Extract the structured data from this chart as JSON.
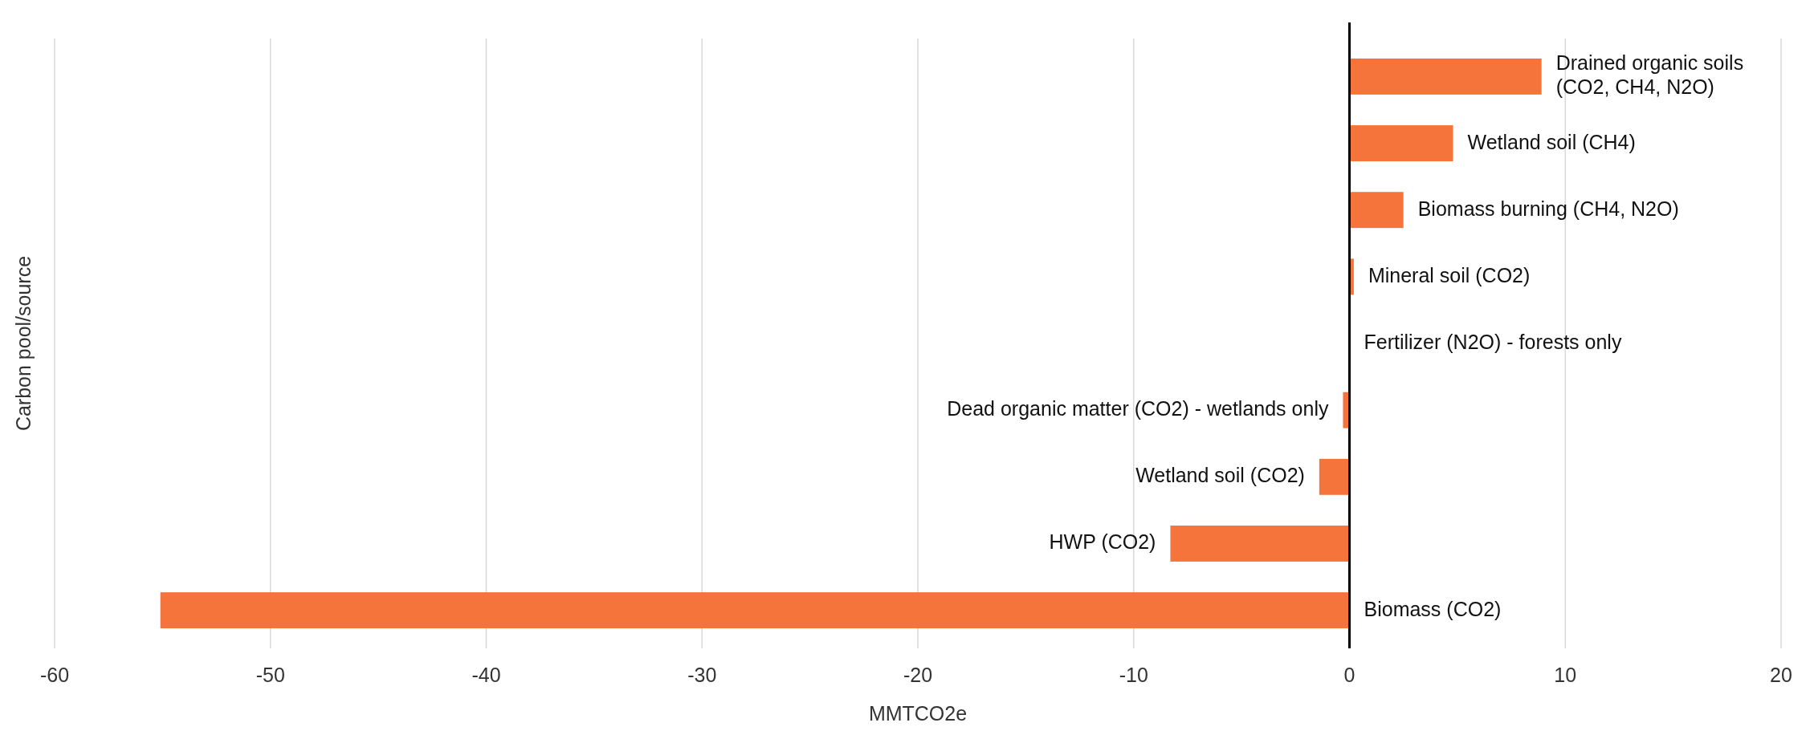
{
  "chart_data": {
    "type": "bar",
    "orientation": "horizontal",
    "xlabel": "MMTCO2e",
    "ylabel": "Carbon pool/source",
    "categories": [
      "Drained organic soils (CO2, CH4, N2O)",
      "Wetland soil (CH4)",
      "Biomass burning (CH4, N2O)",
      "Mineral soil (CO2)",
      "Fertilizer (N2O) - forests only",
      "Dead organic matter (CO2) - wetlands only",
      "Wetland soil (CO2)",
      "HWP (CO2)",
      "Biomass (CO2)"
    ],
    "values": [
      8.9,
      4.8,
      2.5,
      0.2,
      0,
      -0.3,
      -1.4,
      -8.3,
      -55.1
    ],
    "color": "#f4743b",
    "xlim": [
      -60,
      20
    ],
    "xticks": [
      -60,
      -50,
      -40,
      -30,
      -20,
      -10,
      0,
      10,
      20
    ],
    "grid": "x"
  }
}
